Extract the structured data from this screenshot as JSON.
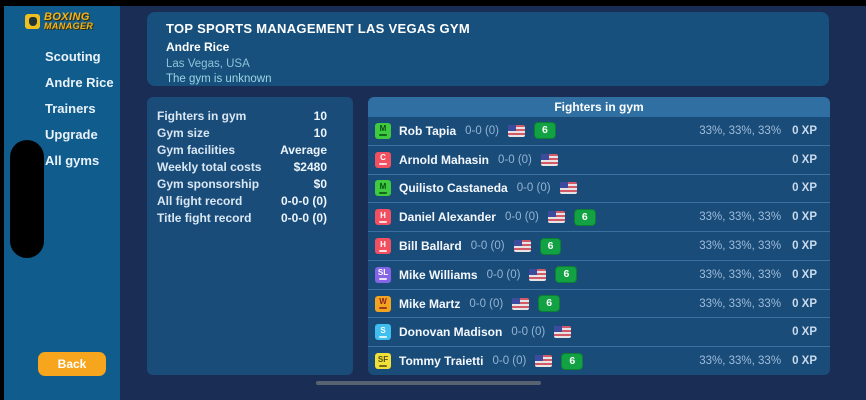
{
  "logo": {
    "line1": "BOXING",
    "line2": "MANAGER"
  },
  "sidebar": {
    "items": [
      {
        "label": "Scouting"
      },
      {
        "label": "Andre Rice"
      },
      {
        "label": "Trainers"
      },
      {
        "label": "Upgrade"
      },
      {
        "label": "All gyms"
      }
    ],
    "back_label": "Back"
  },
  "header": {
    "title": "TOP SPORTS MANAGEMENT LAS VEGAS GYM",
    "manager": "Andre Rice",
    "location": "Las Vegas, USA",
    "status": "The gym is unknown"
  },
  "stats": {
    "rows": [
      {
        "label": "Fighters in gym",
        "value": "10"
      },
      {
        "label": "Gym size",
        "value": "10"
      },
      {
        "label": "Gym facilities",
        "value": "Average"
      },
      {
        "label": "Weekly total costs",
        "value": "$2480"
      },
      {
        "label": "Gym sponsorship",
        "value": "$0"
      },
      {
        "label": "All fight record",
        "value": "0-0-0 (0)"
      },
      {
        "label": "Title fight record",
        "value": "0-0-0 (0)"
      }
    ]
  },
  "fighters": {
    "header": "Fighters in gym",
    "rows": [
      {
        "initials": "M",
        "badge_bg": "#3fcb3f",
        "badge_fg": "#084d12",
        "name": "Rob Tapia",
        "record": "0-0 (0)",
        "flag": "us-flag",
        "level": "6",
        "percents": "33%, 33%, 33%",
        "xp": "0 XP"
      },
      {
        "initials": "C",
        "badge_bg": "#f25060",
        "badge_fg": "#ffffff",
        "name": "Arnold Mahasin",
        "record": "0-0 (0)",
        "flag": "us-flag",
        "level": "",
        "percents": "",
        "xp": "0 XP"
      },
      {
        "initials": "M",
        "badge_bg": "#3fcb3f",
        "badge_fg": "#084d12",
        "name": "Quilisto Castaneda",
        "record": "0-0 (0)",
        "flag": "us-flag",
        "level": "",
        "percents": "",
        "xp": "0 XP"
      },
      {
        "initials": "H",
        "badge_bg": "#f25060",
        "badge_fg": "#ffffff",
        "name": "Daniel Alexander",
        "record": "0-0 (0)",
        "flag": "us-flag",
        "level": "6",
        "percents": "33%, 33%, 33%",
        "xp": "0 XP"
      },
      {
        "initials": "H",
        "badge_bg": "#f25060",
        "badge_fg": "#ffffff",
        "name": "Bill Ballard",
        "record": "0-0 (0)",
        "flag": "us-flag",
        "level": "6",
        "percents": "33%, 33%, 33%",
        "xp": "0 XP"
      },
      {
        "initials": "SL",
        "badge_bg": "#8564e6",
        "badge_fg": "#ffffff",
        "name": "Mike Williams",
        "record": "0-0 (0)",
        "flag": "us-flag",
        "level": "6",
        "percents": "33%, 33%, 33%",
        "xp": "0 XP"
      },
      {
        "initials": "W",
        "badge_bg": "#f2a31f",
        "badge_fg": "#8f1f1f",
        "name": "Mike Martz",
        "record": "0-0 (0)",
        "flag": "us-flag",
        "level": "6",
        "percents": "33%, 33%, 33%",
        "xp": "0 XP"
      },
      {
        "initials": "S",
        "badge_bg": "#3fbef0",
        "badge_fg": "#ffffff",
        "name": "Donovan Madison",
        "record": "0-0 (0)",
        "flag": "us-flag",
        "level": "",
        "percents": "",
        "xp": "0 XP"
      },
      {
        "initials": "SF",
        "badge_bg": "#f2e03a",
        "badge_fg": "#4f4f10",
        "name": "Tommy Traietti",
        "record": "0-0 (0)",
        "flag": "us-flag",
        "level": "6",
        "percents": "33%, 33%, 33%",
        "xp": "0 XP"
      }
    ]
  },
  "colors": {
    "app_background": "#1a2e55",
    "sidebar_background": "#0f5c8d",
    "panel_background": "#1a4c7a",
    "list_header_background": "#2f6fa2",
    "divider": "#3a719f",
    "accent_orange": "#f7a51c",
    "level_badge_green": "#12a244",
    "logo_yellow": "#f3b41c"
  }
}
